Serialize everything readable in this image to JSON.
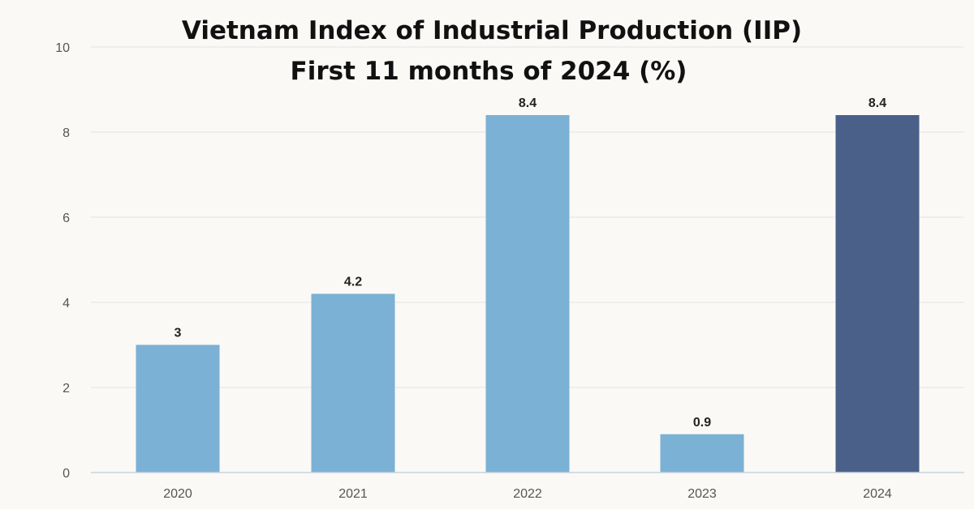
{
  "chart_data": {
    "type": "bar",
    "title": "Vietnam Index of Industrial Production (IIP)",
    "subtitle": "First 11 months of 2024 (%)",
    "categories": [
      "2020",
      "2021",
      "2022",
      "2023",
      "2024"
    ],
    "values": [
      3,
      4.2,
      8.4,
      0.9,
      8.4
    ],
    "data_labels": [
      "3",
      "4.2",
      "8.4",
      "0.9",
      "8.4"
    ],
    "xlabel": "",
    "ylabel": "",
    "ylim": [
      0,
      10
    ],
    "yticks": [
      0,
      2,
      4,
      6,
      8,
      10
    ],
    "grid": true,
    "legend": "none",
    "bar_colors": [
      "#7bb1d4",
      "#7bb1d4",
      "#7bb1d4",
      "#7bb1d4",
      "#4a6089"
    ],
    "highlighted_category": "2024"
  }
}
